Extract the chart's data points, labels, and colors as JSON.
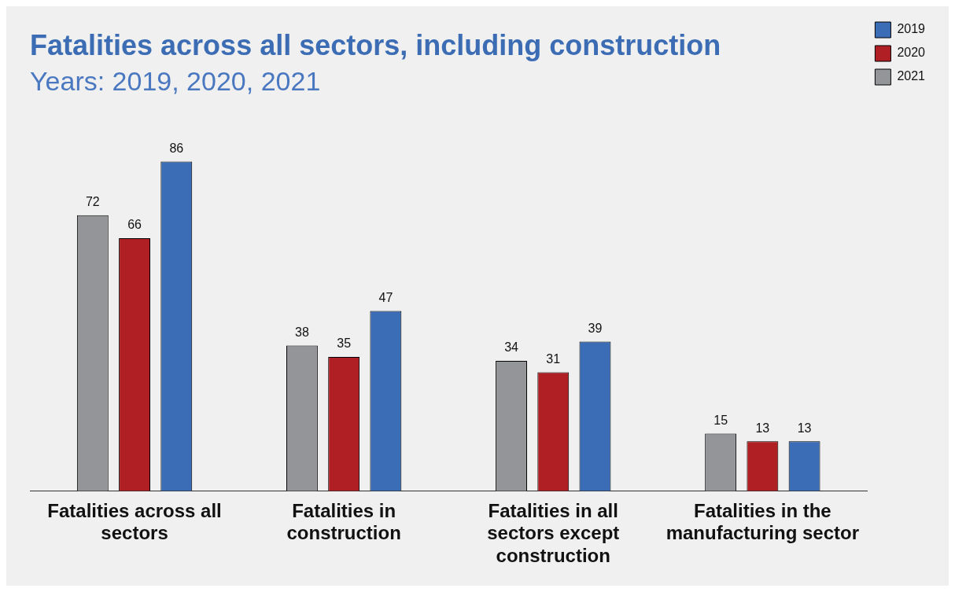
{
  "chart_data": {
    "type": "bar",
    "title": "Fatalities across all sectors, including construction",
    "subtitle": "Years: 2019, 2020, 2021",
    "categories": [
      "Fatalities across all sectors",
      "Fatalities in construction",
      "Fatalities in all sectors except construction",
      "Fatalities in the manufacturing sector"
    ],
    "series": [
      {
        "name": "2021",
        "color": "#939598",
        "values": [
          72,
          38,
          34,
          15
        ]
      },
      {
        "name": "2020",
        "color": "#b01f24",
        "values": [
          66,
          35,
          31,
          13
        ]
      },
      {
        "name": "2019",
        "color": "#3a6db5",
        "values": [
          86,
          47,
          39,
          13
        ]
      }
    ],
    "data_labels": true,
    "grid": false,
    "legend": "top right"
  }
}
